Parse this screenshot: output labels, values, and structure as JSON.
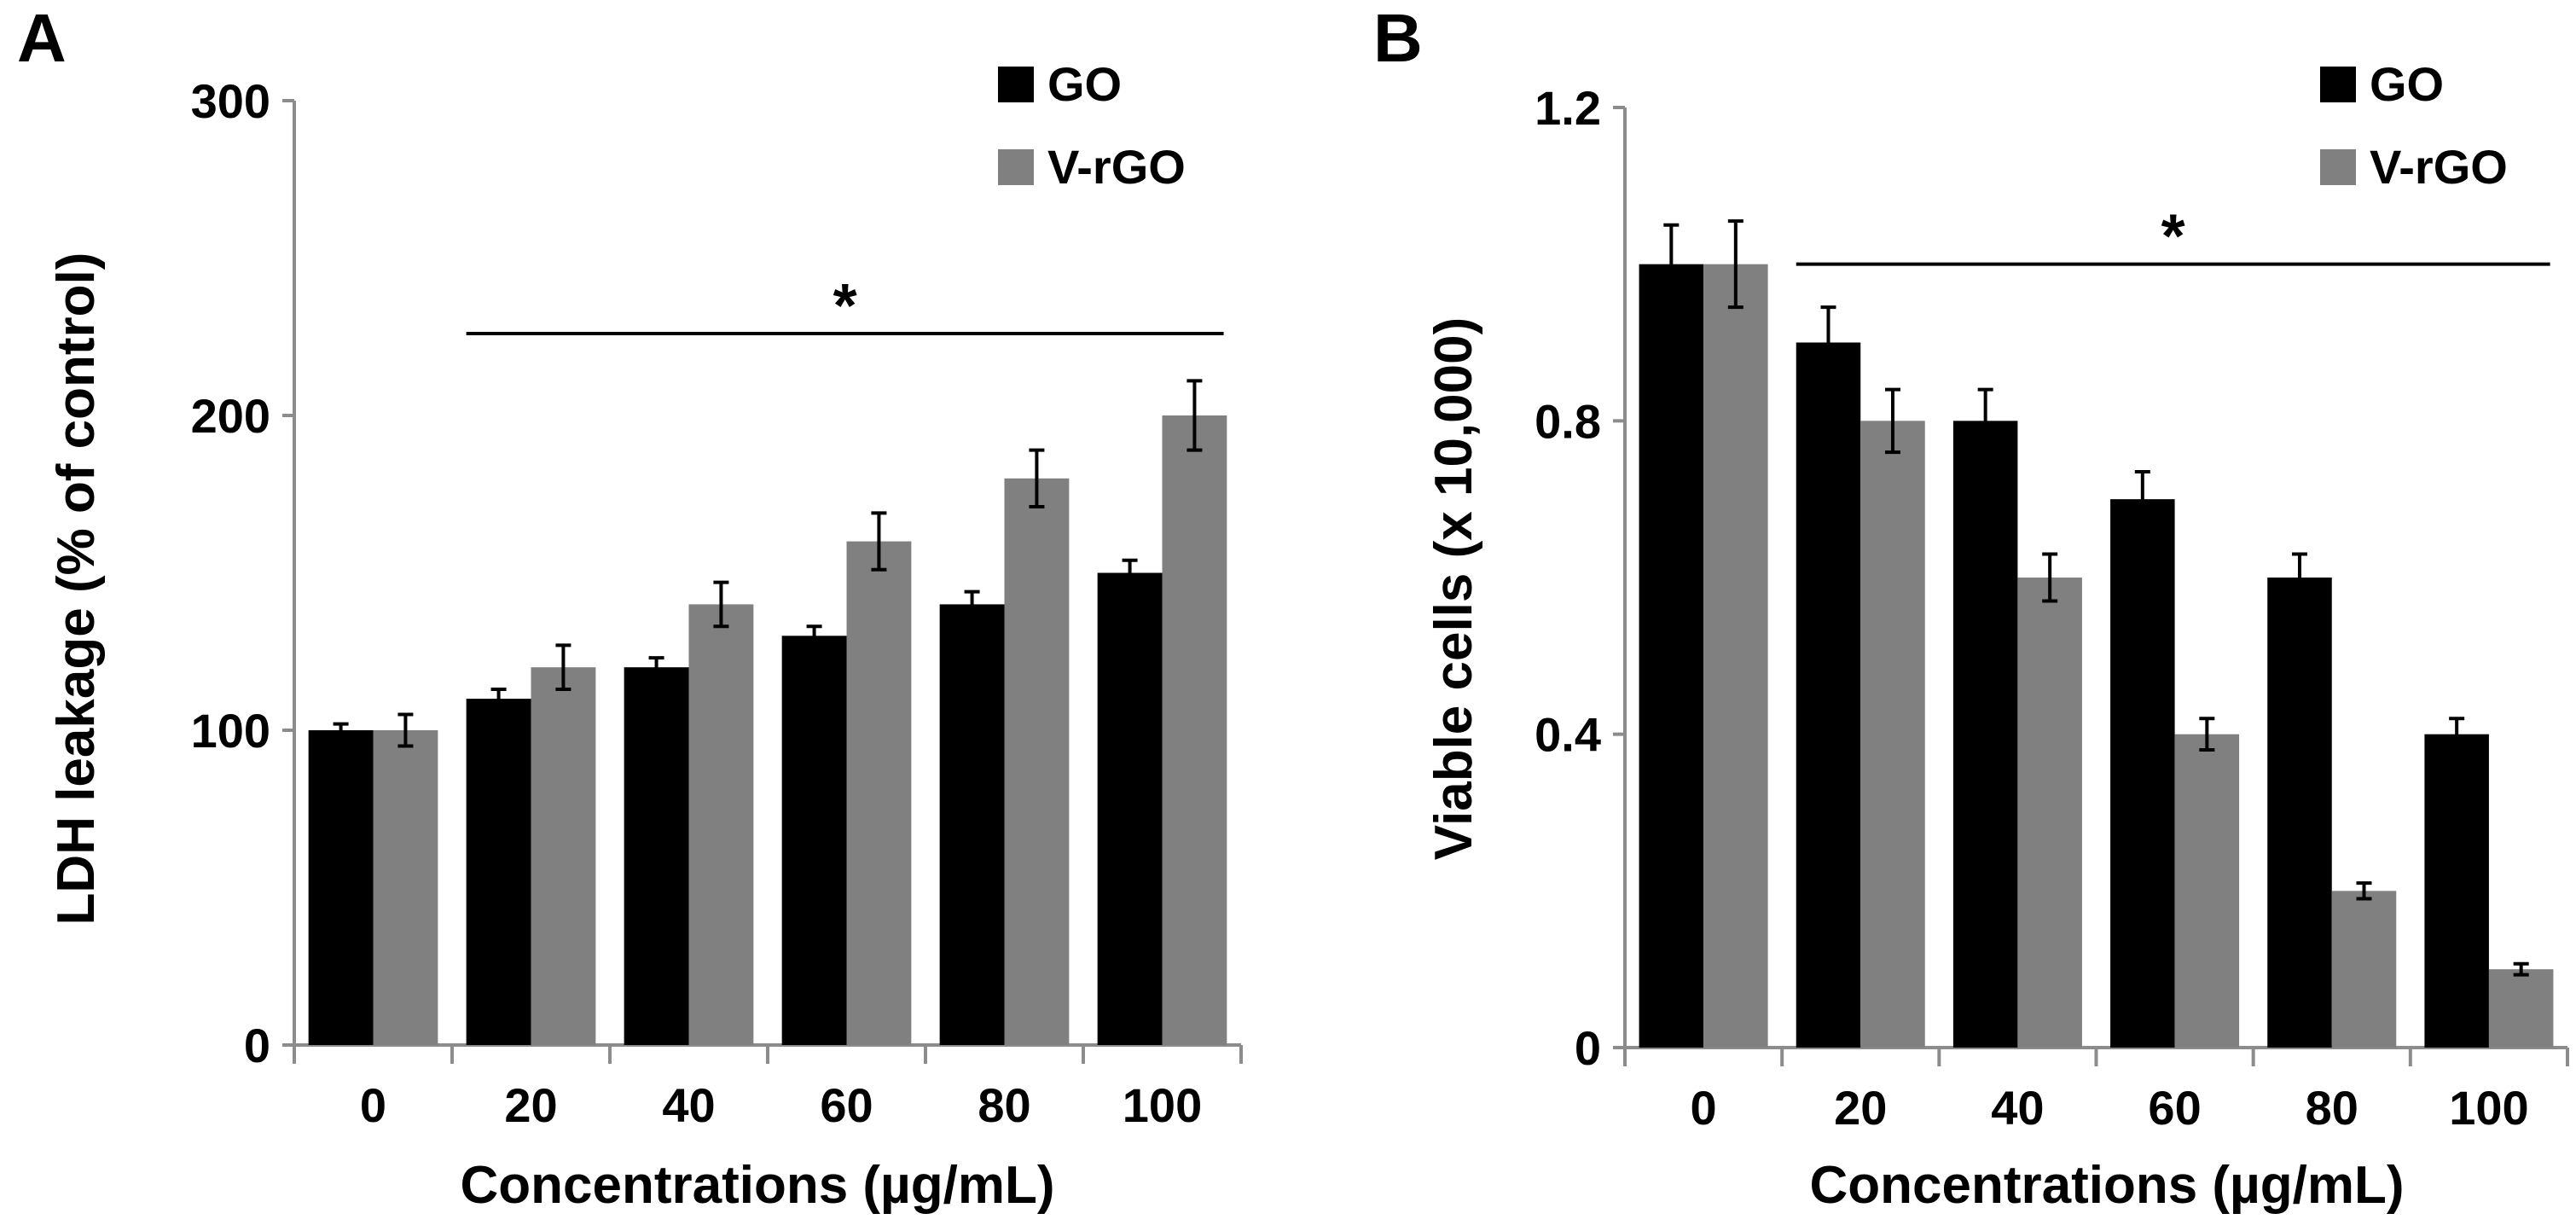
{
  "chart_data": [
    {
      "panel": "A",
      "type": "bar",
      "ylabel": "LDH leakage (% of control)",
      "xlabel": "Concentrations (µg/mL)",
      "categories": [
        "0",
        "20",
        "40",
        "60",
        "80",
        "100"
      ],
      "ylim": [
        0,
        300
      ],
      "yticks": [
        0,
        100,
        200,
        300
      ],
      "series": [
        {
          "name": "GO",
          "color": "#000000",
          "values": [
            100,
            110,
            120,
            130,
            140,
            150
          ],
          "errors": [
            2,
            3,
            3,
            3,
            4,
            4
          ]
        },
        {
          "name": "V-rGO",
          "color": "#808080",
          "values": [
            100,
            120,
            140,
            160,
            180,
            200
          ],
          "errors": [
            5,
            7,
            7,
            9,
            9,
            11
          ]
        }
      ],
      "legend": "top-right",
      "significance": {
        "label": "*",
        "from_category": "20",
        "to_category": "100",
        "level": 226
      }
    },
    {
      "panel": "B",
      "type": "bar",
      "ylabel": "Viable cells (x 10,000)",
      "xlabel": "Concentrations (µg/mL)",
      "categories": [
        "0",
        "20",
        "40",
        "60",
        "80",
        "100"
      ],
      "ylim": [
        0,
        1.2
      ],
      "yticks": [
        "0",
        "0.4",
        "0.8",
        "1.2"
      ],
      "series": [
        {
          "name": "GO",
          "color": "#000000",
          "values": [
            1.0,
            0.9,
            0.8,
            0.7,
            0.6,
            0.4
          ],
          "errors": [
            0.05,
            0.045,
            0.04,
            0.035,
            0.03,
            0.02
          ]
        },
        {
          "name": "V-rGO",
          "color": "#808080",
          "values": [
            1.0,
            0.8,
            0.6,
            0.4,
            0.2,
            0.1
          ],
          "errors": [
            0.055,
            0.04,
            0.03,
            0.02,
            0.01,
            0.007
          ]
        }
      ],
      "legend": "top-right",
      "significance": {
        "label": "*",
        "from_category": "20",
        "to_category": "100",
        "level": 1.0
      }
    }
  ]
}
